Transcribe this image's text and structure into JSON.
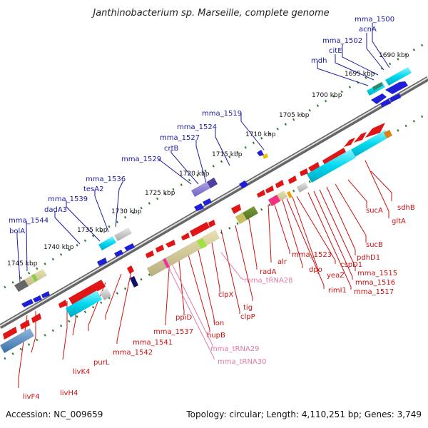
{
  "title": "Janthinobacterium sp. Marseille, complete genome",
  "footer": {
    "accession": "Accession: NC_009659",
    "topology": "Topology: circular; Length: 4,110,251 bp; Genes: 3,749"
  },
  "ticks": [
    "1690 kbp",
    "1695 kbp",
    "1700 kbp",
    "1705 kbp",
    "1710 kbp",
    "1715 kbp",
    "1720 kbp",
    "1725 kbp",
    "1730 kbp",
    "1735 kbp",
    "1740 kbp",
    "1745 kbp"
  ],
  "labels_top": [
    "mma_1500",
    "acnA",
    "mma_1502",
    "citE",
    "mdh",
    "mma_1519",
    "mma_1524",
    "mma_1527",
    "crtB",
    "mma_1529",
    "mma_1536",
    "tesA2",
    "mma_1539",
    "dadA3",
    "mma_1544",
    "bolA"
  ],
  "labels_bottom": [
    "sdhB",
    "gltA",
    "sucA",
    "sucB",
    "pdhD1",
    "mma_1515",
    "mma_1516",
    "mma_1517",
    "cspD1",
    "yeaZ",
    "rimI1",
    "dpo",
    "mma_1523",
    "alr",
    "radA",
    "mma_tRNA28",
    "tig",
    "clpP",
    "clpX",
    "lon",
    "hupB",
    "ppiD",
    "mma_tRNA29",
    "mma_tRNA30",
    "mma_1537",
    "mma_1541",
    "mma_1542",
    "purL",
    "livK4",
    "livH4",
    "livF4"
  ],
  "colors": {
    "top_label": "#1a1aa0",
    "bottom_label": "#cc1111",
    "trna_label": "#e07aa8",
    "forward_gene": "#1f1fd8",
    "reverse_gene": "#e01515",
    "backbone": "#777777",
    "tick_dot": "#2a7a2a"
  }
}
